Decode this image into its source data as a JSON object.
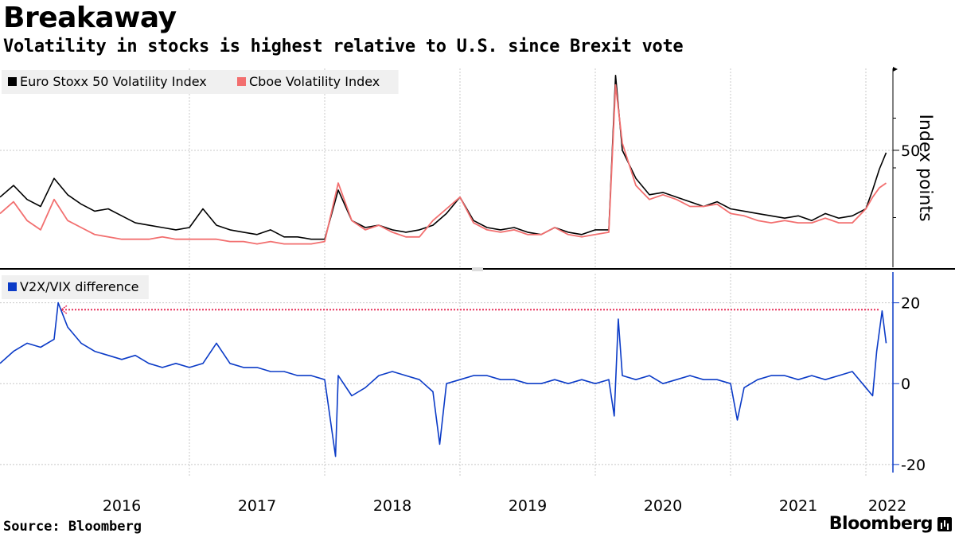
{
  "title": "Breakaway",
  "subtitle": "Volatility in stocks is highest relative to U.S. since Brexit vote",
  "source": "Source: Bloomberg",
  "brand": "Bloomberg",
  "colors": {
    "v2x": "#000000",
    "vix": "#f26f6f",
    "diff": "#0b3bc7",
    "reference": "#e8335c",
    "grid": "#c8c8c8"
  },
  "chart_data": [
    {
      "type": "line",
      "panel": "top",
      "title": "",
      "ylabel": "Index points",
      "yticks": [
        {
          "value": 50,
          "label": "50"
        }
      ],
      "ylim": [
        0,
        85
      ],
      "xlim": [
        2015.6,
        2022.2
      ],
      "grid": true,
      "legend_placement": "top-left",
      "x": [
        2015.6,
        2015.7,
        2015.8,
        2015.9,
        2016.0,
        2016.1,
        2016.2,
        2016.3,
        2016.4,
        2016.5,
        2016.6,
        2016.7,
        2016.8,
        2016.9,
        2017.0,
        2017.1,
        2017.2,
        2017.3,
        2017.4,
        2017.5,
        2017.6,
        2017.7,
        2017.8,
        2017.9,
        2018.0,
        2018.1,
        2018.2,
        2018.3,
        2018.4,
        2018.5,
        2018.6,
        2018.7,
        2018.8,
        2018.9,
        2019.0,
        2019.1,
        2019.2,
        2019.3,
        2019.4,
        2019.5,
        2019.6,
        2019.7,
        2019.8,
        2019.9,
        2020.0,
        2020.1,
        2020.15,
        2020.2,
        2020.3,
        2020.4,
        2020.5,
        2020.6,
        2020.7,
        2020.8,
        2020.9,
        2021.0,
        2021.1,
        2021.2,
        2021.3,
        2021.4,
        2021.5,
        2021.6,
        2021.7,
        2021.8,
        2021.9,
        2022.0,
        2022.05,
        2022.1,
        2022.15
      ],
      "series": [
        {
          "name": "Euro Stoxx 50 Volatility Index",
          "values": [
            30,
            35,
            29,
            26,
            38,
            31,
            27,
            24,
            25,
            22,
            19,
            18,
            17,
            16,
            17,
            25,
            18,
            16,
            15,
            14,
            16,
            13,
            13,
            12,
            12,
            33,
            20,
            17,
            18,
            16,
            15,
            16,
            18,
            23,
            30,
            20,
            17,
            16,
            17,
            15,
            14,
            17,
            15,
            14,
            16,
            16,
            82,
            50,
            38,
            31,
            32,
            30,
            28,
            26,
            28,
            25,
            24,
            23,
            22,
            21,
            22,
            20,
            23,
            21,
            22,
            25,
            33,
            42,
            49
          ]
        },
        {
          "name": "Cboe Volatility Index",
          "values": [
            23,
            28,
            20,
            16,
            29,
            20,
            17,
            14,
            13,
            12,
            12,
            12,
            13,
            12,
            12,
            12,
            12,
            11,
            11,
            10,
            11,
            10,
            10,
            10,
            11,
            36,
            20,
            16,
            18,
            15,
            13,
            13,
            20,
            25,
            30,
            19,
            16,
            15,
            16,
            14,
            14,
            17,
            14,
            13,
            14,
            15,
            78,
            53,
            35,
            29,
            31,
            29,
            26,
            26,
            27,
            23,
            22,
            20,
            19,
            20,
            19,
            19,
            21,
            19,
            19,
            25,
            30,
            34,
            36
          ]
        }
      ]
    },
    {
      "type": "line",
      "panel": "bottom",
      "title": "",
      "ylabel": "",
      "yticks": [
        {
          "value": 20,
          "label": "20"
        },
        {
          "value": 0,
          "label": "0"
        },
        {
          "value": -20,
          "label": "-20"
        }
      ],
      "ylim": [
        -22,
        28
      ],
      "xlim": [
        2015.6,
        2022.2
      ],
      "xticks": [
        "2016",
        "2017",
        "2018",
        "2019",
        "2020",
        "2021",
        "2022"
      ],
      "grid": true,
      "legend_placement": "top-left",
      "reference_line": {
        "value": 18.3,
        "from": 2016.0,
        "to": 2022.1,
        "style": "dotted"
      },
      "x": [
        2015.6,
        2015.7,
        2015.8,
        2015.9,
        2016.0,
        2016.03,
        2016.1,
        2016.2,
        2016.3,
        2016.4,
        2016.5,
        2016.6,
        2016.7,
        2016.8,
        2016.9,
        2017.0,
        2017.1,
        2017.2,
        2017.3,
        2017.4,
        2017.5,
        2017.6,
        2017.7,
        2017.8,
        2017.9,
        2018.0,
        2018.08,
        2018.1,
        2018.2,
        2018.3,
        2018.4,
        2018.5,
        2018.6,
        2018.7,
        2018.8,
        2018.85,
        2018.9,
        2019.0,
        2019.1,
        2019.2,
        2019.3,
        2019.4,
        2019.5,
        2019.6,
        2019.7,
        2019.8,
        2019.9,
        2020.0,
        2020.1,
        2020.14,
        2020.17,
        2020.2,
        2020.3,
        2020.4,
        2020.5,
        2020.6,
        2020.7,
        2020.8,
        2020.9,
        2021.0,
        2021.05,
        2021.1,
        2021.2,
        2021.3,
        2021.4,
        2021.5,
        2021.6,
        2021.7,
        2021.8,
        2021.9,
        2022.0,
        2022.05,
        2022.08,
        2022.12,
        2022.15
      ],
      "series": [
        {
          "name": "V2X/VIX difference",
          "values": [
            5,
            8,
            10,
            9,
            11,
            20,
            14,
            10,
            8,
            7,
            6,
            7,
            5,
            4,
            5,
            4,
            5,
            10,
            5,
            4,
            4,
            3,
            3,
            2,
            2,
            1,
            -18,
            2,
            -3,
            -1,
            2,
            3,
            2,
            1,
            -2,
            -15,
            0,
            1,
            2,
            2,
            1,
            1,
            0,
            0,
            1,
            0,
            1,
            0,
            1,
            -8,
            16,
            2,
            1,
            2,
            0,
            1,
            2,
            1,
            1,
            0,
            -9,
            -1,
            1,
            2,
            2,
            1,
            2,
            1,
            2,
            3,
            -1,
            -3,
            8,
            18,
            10
          ]
        }
      ]
    }
  ]
}
